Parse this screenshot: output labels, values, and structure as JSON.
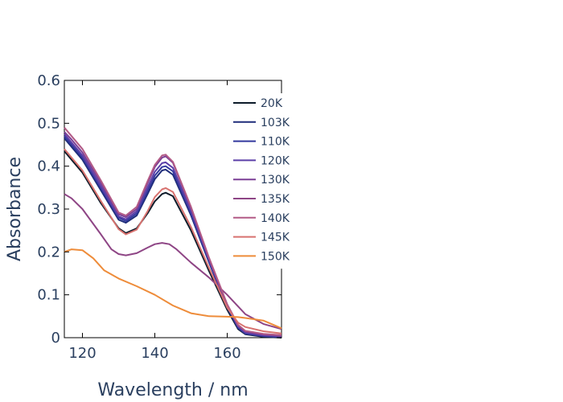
{
  "chart_data": {
    "type": "line",
    "title": "",
    "xlabel": "Wavelength / nm",
    "ylabel": "Absorbance",
    "xlim": [
      115,
      175
    ],
    "ylim": [
      0,
      0.6
    ],
    "x_ticks": [
      120,
      140,
      160
    ],
    "y_ticks": [
      0,
      0.1,
      0.2,
      0.3,
      0.4,
      0.5,
      0.6
    ],
    "y_tick_labels": [
      "0",
      "0.1",
      "0.2",
      "0.3",
      "0.4",
      "0.5",
      "0.6"
    ],
    "grid": false,
    "legend_position": "top-right",
    "series": [
      {
        "name": "20K",
        "color": "#0d1b2a",
        "points": [
          [
            115,
            0.435
          ],
          [
            117,
            0.415
          ],
          [
            120,
            0.385
          ],
          [
            125,
            0.315
          ],
          [
            130,
            0.255
          ],
          [
            132,
            0.244
          ],
          [
            135,
            0.255
          ],
          [
            138,
            0.29
          ],
          [
            140,
            0.318
          ],
          [
            142,
            0.335
          ],
          [
            143,
            0.338
          ],
          [
            145,
            0.33
          ],
          [
            150,
            0.25
          ],
          [
            155,
            0.155
          ],
          [
            160,
            0.065
          ],
          [
            163,
            0.02
          ],
          [
            165,
            0.008
          ],
          [
            170,
            0.002
          ],
          [
            175,
            0
          ]
        ]
      },
      {
        "name": "103K",
        "color": "#1f2d7a",
        "points": [
          [
            115,
            0.465
          ],
          [
            117,
            0.445
          ],
          [
            120,
            0.415
          ],
          [
            125,
            0.345
          ],
          [
            130,
            0.275
          ],
          [
            132,
            0.268
          ],
          [
            135,
            0.285
          ],
          [
            138,
            0.335
          ],
          [
            140,
            0.37
          ],
          [
            142,
            0.39
          ],
          [
            143,
            0.392
          ],
          [
            145,
            0.38
          ],
          [
            150,
            0.285
          ],
          [
            155,
            0.175
          ],
          [
            160,
            0.07
          ],
          [
            163,
            0.022
          ],
          [
            165,
            0.009
          ],
          [
            170,
            0.003
          ],
          [
            175,
            0.001
          ]
        ]
      },
      {
        "name": "110K",
        "color": "#33399e",
        "points": [
          [
            115,
            0.47
          ],
          [
            117,
            0.45
          ],
          [
            120,
            0.42
          ],
          [
            125,
            0.35
          ],
          [
            130,
            0.28
          ],
          [
            132,
            0.272
          ],
          [
            135,
            0.29
          ],
          [
            138,
            0.342
          ],
          [
            140,
            0.378
          ],
          [
            142,
            0.398
          ],
          [
            143,
            0.4
          ],
          [
            145,
            0.388
          ],
          [
            150,
            0.29
          ],
          [
            155,
            0.178
          ],
          [
            160,
            0.072
          ],
          [
            163,
            0.024
          ],
          [
            165,
            0.01
          ],
          [
            170,
            0.004
          ],
          [
            175,
            0.002
          ]
        ]
      },
      {
        "name": "120K",
        "color": "#5b3fa8",
        "points": [
          [
            115,
            0.475
          ],
          [
            117,
            0.455
          ],
          [
            120,
            0.425
          ],
          [
            125,
            0.355
          ],
          [
            130,
            0.283
          ],
          [
            132,
            0.276
          ],
          [
            135,
            0.295
          ],
          [
            138,
            0.35
          ],
          [
            140,
            0.387
          ],
          [
            142,
            0.407
          ],
          [
            143,
            0.409
          ],
          [
            145,
            0.396
          ],
          [
            150,
            0.295
          ],
          [
            155,
            0.18
          ],
          [
            160,
            0.074
          ],
          [
            163,
            0.026
          ],
          [
            165,
            0.012
          ],
          [
            170,
            0.005
          ],
          [
            175,
            0.003
          ]
        ]
      },
      {
        "name": "130K",
        "color": "#7b3f96",
        "points": [
          [
            115,
            0.48
          ],
          [
            117,
            0.462
          ],
          [
            120,
            0.432
          ],
          [
            125,
            0.362
          ],
          [
            130,
            0.288
          ],
          [
            132,
            0.281
          ],
          [
            135,
            0.3
          ],
          [
            138,
            0.36
          ],
          [
            140,
            0.398
          ],
          [
            142,
            0.42
          ],
          [
            143,
            0.423
          ],
          [
            145,
            0.408
          ],
          [
            150,
            0.302
          ],
          [
            155,
            0.184
          ],
          [
            160,
            0.076
          ],
          [
            163,
            0.028
          ],
          [
            165,
            0.014
          ],
          [
            170,
            0.007
          ],
          [
            175,
            0.004
          ]
        ]
      },
      {
        "name": "135K",
        "color": "#8e4585",
        "points": [
          [
            115,
            0.335
          ],
          [
            117,
            0.325
          ],
          [
            120,
            0.3
          ],
          [
            125,
            0.242
          ],
          [
            128,
            0.206
          ],
          [
            130,
            0.195
          ],
          [
            132,
            0.192
          ],
          [
            135,
            0.197
          ],
          [
            138,
            0.21
          ],
          [
            140,
            0.218
          ],
          [
            142,
            0.221
          ],
          [
            144,
            0.218
          ],
          [
            146,
            0.206
          ],
          [
            150,
            0.175
          ],
          [
            155,
            0.14
          ],
          [
            160,
            0.1
          ],
          [
            165,
            0.055
          ],
          [
            170,
            0.032
          ],
          [
            175,
            0.02
          ]
        ]
      },
      {
        "name": "140K",
        "color": "#b25a86",
        "points": [
          [
            115,
            0.49
          ],
          [
            117,
            0.47
          ],
          [
            120,
            0.44
          ],
          [
            125,
            0.368
          ],
          [
            130,
            0.292
          ],
          [
            132,
            0.285
          ],
          [
            135,
            0.305
          ],
          [
            138,
            0.365
          ],
          [
            140,
            0.403
          ],
          [
            142,
            0.425
          ],
          [
            143,
            0.427
          ],
          [
            145,
            0.41
          ],
          [
            150,
            0.305
          ],
          [
            155,
            0.186
          ],
          [
            160,
            0.078
          ],
          [
            163,
            0.03
          ],
          [
            165,
            0.016
          ],
          [
            170,
            0.009
          ],
          [
            175,
            0.006
          ]
        ]
      },
      {
        "name": "145K",
        "color": "#d8726f",
        "points": [
          [
            115,
            0.44
          ],
          [
            117,
            0.42
          ],
          [
            120,
            0.39
          ],
          [
            125,
            0.32
          ],
          [
            130,
            0.253
          ],
          [
            132,
            0.241
          ],
          [
            135,
            0.252
          ],
          [
            138,
            0.295
          ],
          [
            140,
            0.328
          ],
          [
            142,
            0.346
          ],
          [
            143,
            0.349
          ],
          [
            145,
            0.34
          ],
          [
            150,
            0.258
          ],
          [
            155,
            0.162
          ],
          [
            160,
            0.07
          ],
          [
            163,
            0.035
          ],
          [
            165,
            0.025
          ],
          [
            170,
            0.015
          ],
          [
            175,
            0.01
          ]
        ]
      },
      {
        "name": "150K",
        "color": "#ee8c3a",
        "points": [
          [
            115,
            0.2
          ],
          [
            117,
            0.206
          ],
          [
            120,
            0.204
          ],
          [
            123,
            0.185
          ],
          [
            126,
            0.157
          ],
          [
            130,
            0.138
          ],
          [
            135,
            0.12
          ],
          [
            140,
            0.1
          ],
          [
            145,
            0.075
          ],
          [
            150,
            0.057
          ],
          [
            155,
            0.05
          ],
          [
            160,
            0.049
          ],
          [
            163,
            0.048
          ],
          [
            165,
            0.046
          ],
          [
            170,
            0.04
          ],
          [
            175,
            0.022
          ]
        ]
      }
    ]
  }
}
